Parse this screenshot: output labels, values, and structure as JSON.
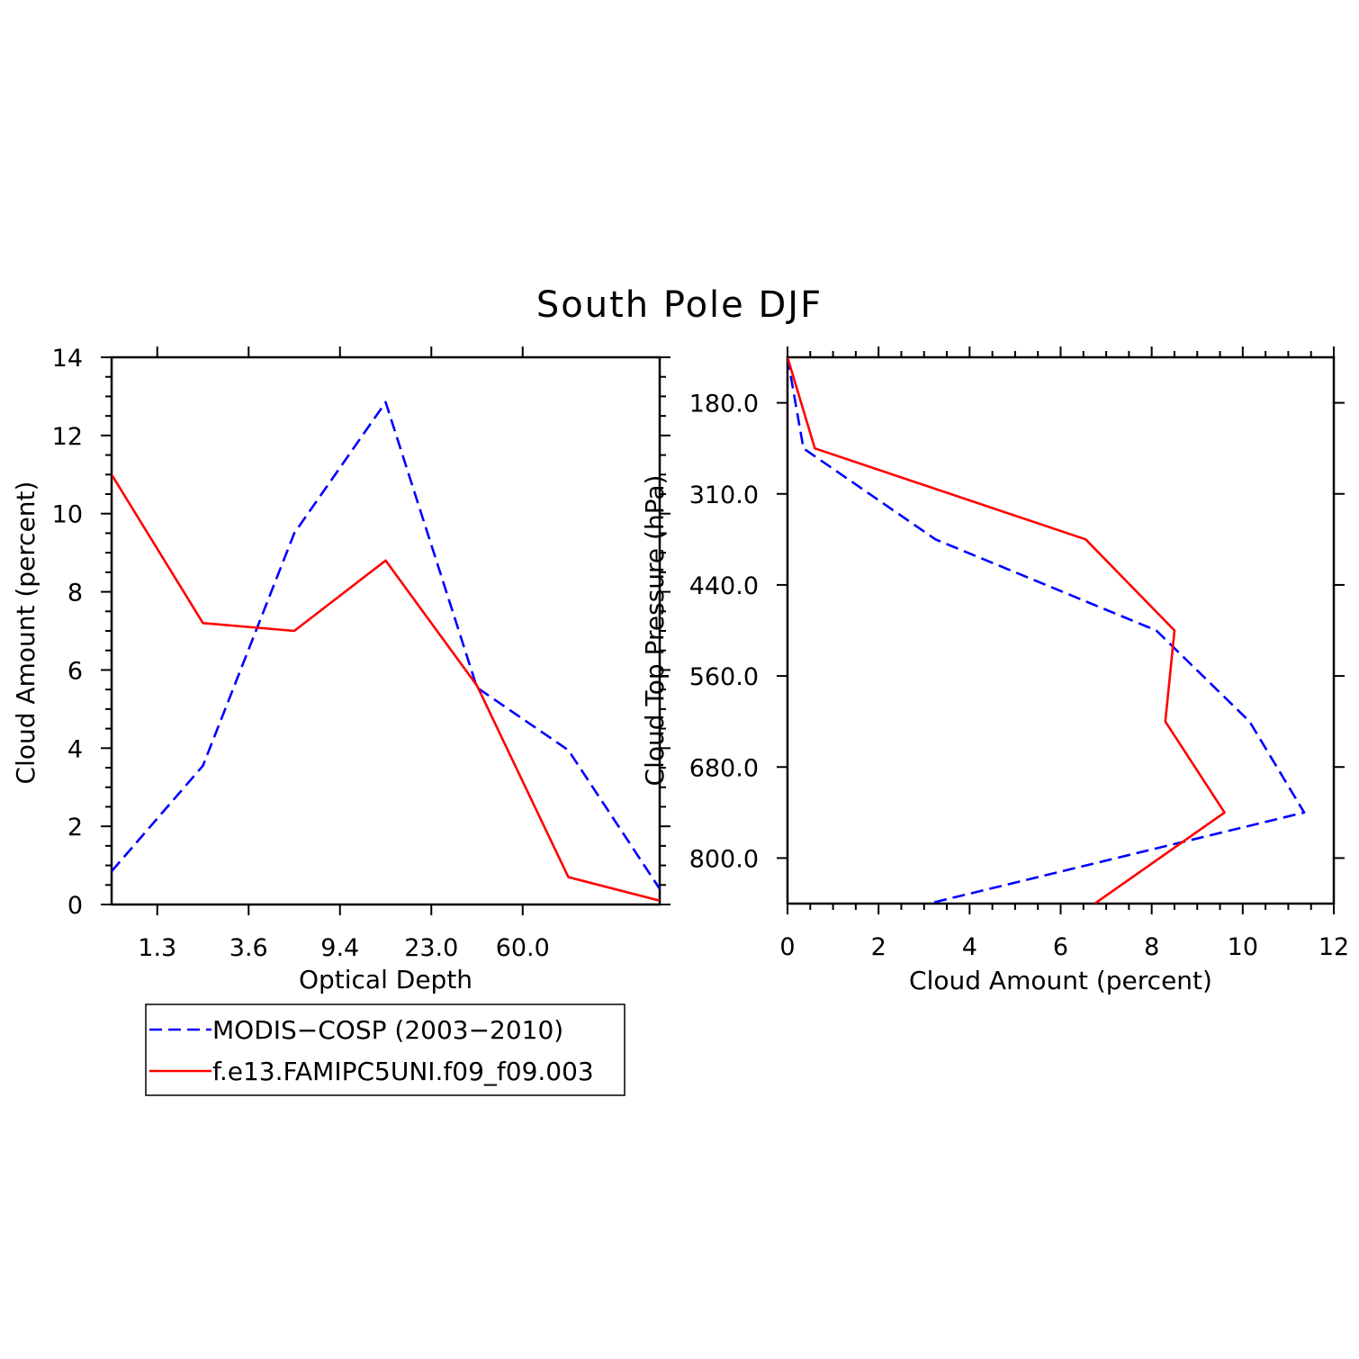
{
  "figure": {
    "title": "South Pole DJF"
  },
  "legend": {
    "entries": [
      {
        "label": "MODIS−COSP (2003−2010)",
        "color": "#0000ff",
        "dash": "dashed"
      },
      {
        "label": "f.e13.FAMIPC5UNI.f09_f09.003",
        "color": "#ff0000",
        "dash": "solid"
      }
    ]
  },
  "chart_data": [
    {
      "type": "line",
      "xlabel": "Optical Depth",
      "ylabel": "Cloud Amount (percent)",
      "ylim": [
        0,
        14
      ],
      "y_ticks": [
        0,
        2,
        4,
        6,
        8,
        10,
        12,
        14
      ],
      "x_tick_labels": [
        "1.3",
        "3.6",
        "9.4",
        "23.0",
        "60.0"
      ],
      "x_bin_count": 7,
      "series": [
        {
          "name": "MODIS−COSP (2003−2010)",
          "color": "#0000ff",
          "dash": "dashed",
          "values": [
            0.85,
            3.55,
            9.5,
            12.85,
            5.55,
            3.95,
            0.4
          ]
        },
        {
          "name": "f.e13.FAMIPC5UNI.f09_f09.003",
          "color": "#ff0000",
          "dash": "solid",
          "values": [
            11.0,
            7.2,
            7.0,
            8.8,
            5.6,
            0.7,
            0.1
          ]
        }
      ]
    },
    {
      "type": "line",
      "orientation": "vertical-profile",
      "xlabel": "Cloud Amount (percent)",
      "ylabel": "Cloud Top Pressure (hPa)",
      "xlim": [
        0,
        12
      ],
      "x_ticks": [
        0,
        2,
        4,
        6,
        8,
        10,
        12
      ],
      "y_tick_labels": [
        "180.0",
        "310.0",
        "440.0",
        "560.0",
        "680.0",
        "800.0"
      ],
      "y_bin_count": 7,
      "series": [
        {
          "name": "MODIS−COSP (2003−2010)",
          "color": "#0000ff",
          "dash": "dashed",
          "values": [
            0.0,
            0.35,
            3.25,
            8.1,
            10.15,
            11.35,
            3.1
          ]
        },
        {
          "name": "f.e13.FAMIPC5UNI.f09_f09.003",
          "color": "#ff0000",
          "dash": "solid",
          "values": [
            0.0,
            0.6,
            6.55,
            8.5,
            8.3,
            9.6,
            6.75
          ]
        }
      ]
    }
  ]
}
